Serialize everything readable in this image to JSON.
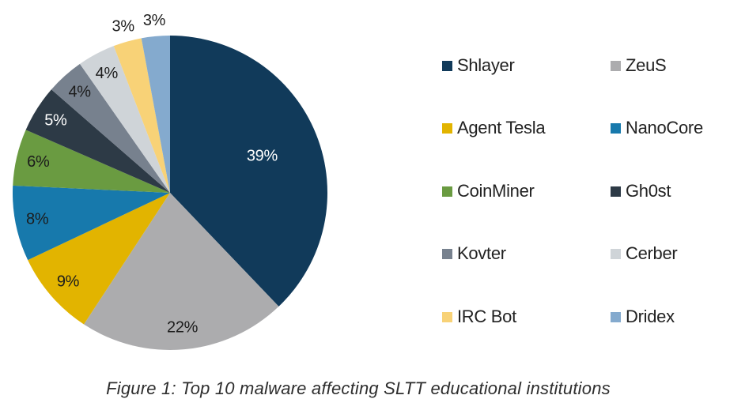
{
  "figure": {
    "caption": "Figure 1: Top 10 malware affecting SLTT educational institutions"
  },
  "chart_data": {
    "type": "pie",
    "title": "Top 10 malware affecting SLTT educational institutions",
    "unit": "%",
    "start_angle_deg": 0,
    "direction": "clockwise",
    "legend_position": "right",
    "legend_columns": 2,
    "slices": [
      {
        "label": "Shlayer",
        "value": 39,
        "display": "39%",
        "color": "#113a5a"
      },
      {
        "label": "ZeuS",
        "value": 22,
        "display": "22%",
        "color": "#acacae"
      },
      {
        "label": "Agent Tesla",
        "value": 9,
        "display": "9%",
        "color": "#e2b400"
      },
      {
        "label": "NanoCore",
        "value": 8,
        "display": "8%",
        "color": "#1779ac"
      },
      {
        "label": "CoinMiner",
        "value": 6,
        "display": "6%",
        "color": "#6a9b41"
      },
      {
        "label": "Gh0st",
        "value": 5,
        "display": "5%",
        "color": "#2d3a46"
      },
      {
        "label": "Kovter",
        "value": 4,
        "display": "4%",
        "color": "#77818e"
      },
      {
        "label": "Cerber",
        "value": 4,
        "display": "4%",
        "color": "#cfd4d8"
      },
      {
        "label": "IRC Bot",
        "value": 3,
        "display": "3%",
        "color": "#f8d277"
      },
      {
        "label": "Dridex",
        "value": 3,
        "display": "3%",
        "color": "#84aace"
      }
    ],
    "layout": {
      "center": [
        215,
        244
      ],
      "radius": 199,
      "label_radius_large": 0.63,
      "label_radius_mid": 0.86,
      "label_radius_outside": 1.1,
      "outside_threshold": 3,
      "large_threshold": 30,
      "dark_text_color": "#1c1c1c",
      "light_text_color": "#ffffff"
    }
  }
}
